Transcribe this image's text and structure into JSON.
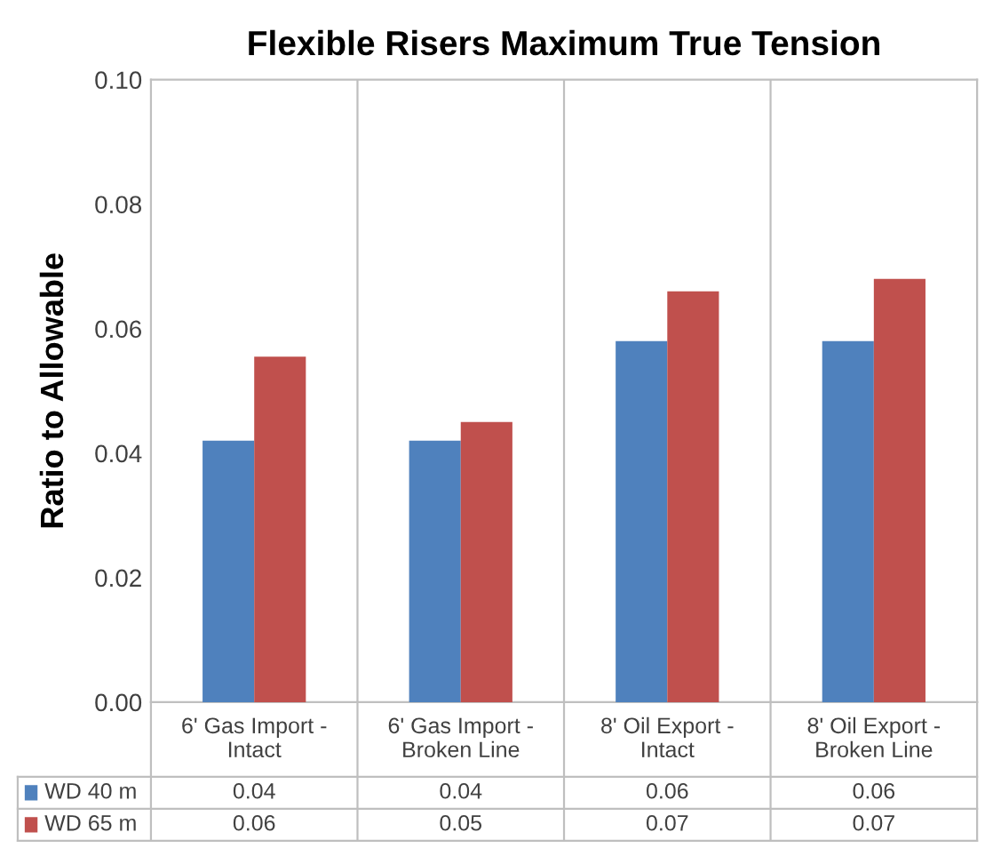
{
  "chart_data": {
    "type": "bar",
    "title": "Flexible Risers Maximum True Tension",
    "ylabel": "Ratio to Allowable",
    "categories": [
      "6' Gas Import -\nIntact",
      "6' Gas Import -\nBroken Line",
      "8' Oil Export -\nIntact",
      "8' Oil Export -\nBroken Line"
    ],
    "series": [
      {
        "name": "WD 40 m",
        "color": "#4f81bd",
        "values": [
          0.042,
          0.042,
          0.058,
          0.058
        ],
        "value_labels": [
          "0.04",
          "0.04",
          "0.06",
          "0.06"
        ]
      },
      {
        "name": "WD 65 m",
        "color": "#c0504d",
        "values": [
          0.0555,
          0.045,
          0.066,
          0.068
        ],
        "value_labels": [
          "0.06",
          "0.05",
          "0.07",
          "0.07"
        ]
      }
    ],
    "ylim": [
      0,
      0.1
    ],
    "yticks": [
      {
        "value": 0,
        "label": "0.00"
      },
      {
        "value": 0.02,
        "label": "0.02"
      },
      {
        "value": 0.04,
        "label": "0.04"
      },
      {
        "value": 0.06,
        "label": "0.06"
      },
      {
        "value": 0.08,
        "label": "0.08"
      },
      {
        "value": 0.1,
        "label": "0.10"
      }
    ],
    "grid": "x",
    "legend": "bottom"
  }
}
